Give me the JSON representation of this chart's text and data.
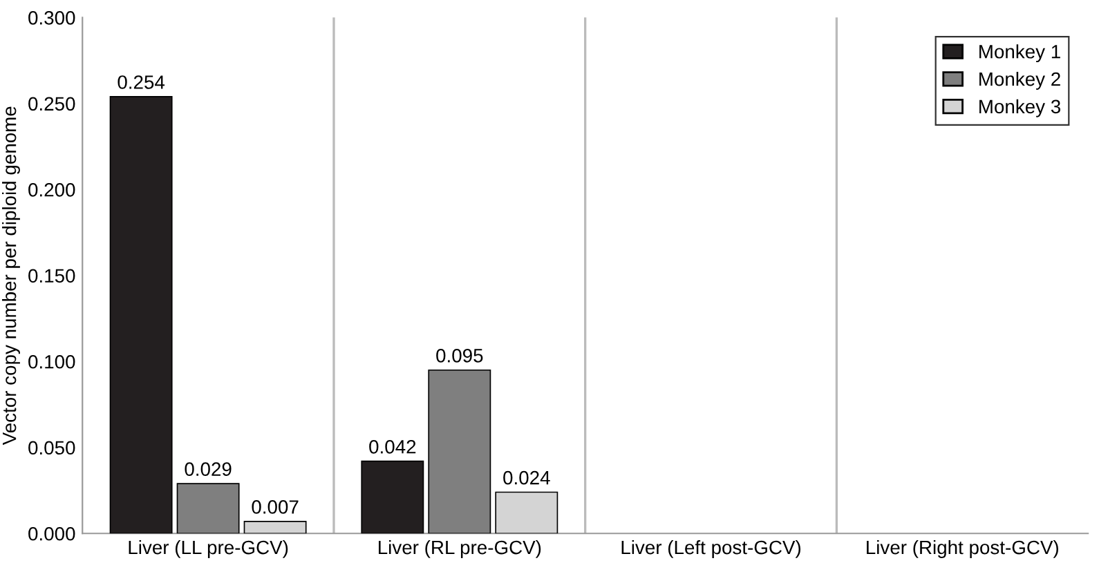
{
  "chart_data": {
    "type": "bar",
    "ylabel": "Vector copy number per diploid genome",
    "categories": [
      "Liver (LL pre-GCV)",
      "Liver (RL pre-GCV)",
      "Liver (Left post-GCV)",
      "Liver (Right post-GCV)"
    ],
    "series": [
      {
        "name": "Monkey 1",
        "color": "#231f20",
        "values": [
          0.254,
          0.042,
          null,
          null
        ],
        "value_labels": [
          "0.254",
          "0.042",
          null,
          null
        ]
      },
      {
        "name": "Monkey 2",
        "color": "#7f7f7f",
        "values": [
          0.029,
          0.095,
          null,
          null
        ],
        "value_labels": [
          "0.029",
          "0.095",
          null,
          null
        ]
      },
      {
        "name": "Monkey 3",
        "color": "#d4d4d4",
        "values": [
          0.007,
          0.024,
          null,
          null
        ],
        "value_labels": [
          "0.007",
          "0.024",
          null,
          null
        ]
      }
    ],
    "ylim": [
      0,
      0.3
    ],
    "yticks": [
      {
        "value": 0,
        "label": "0.000"
      },
      {
        "value": 0.05,
        "label": "0.050"
      },
      {
        "value": 0.1,
        "label": "0.100"
      },
      {
        "value": 0.15,
        "label": "0.150"
      },
      {
        "value": 0.2,
        "label": "0.200"
      },
      {
        "value": 0.25,
        "label": "0.250"
      },
      {
        "value": 0.3,
        "label": "0.300"
      }
    ],
    "grid": "x",
    "legend": "top right"
  }
}
